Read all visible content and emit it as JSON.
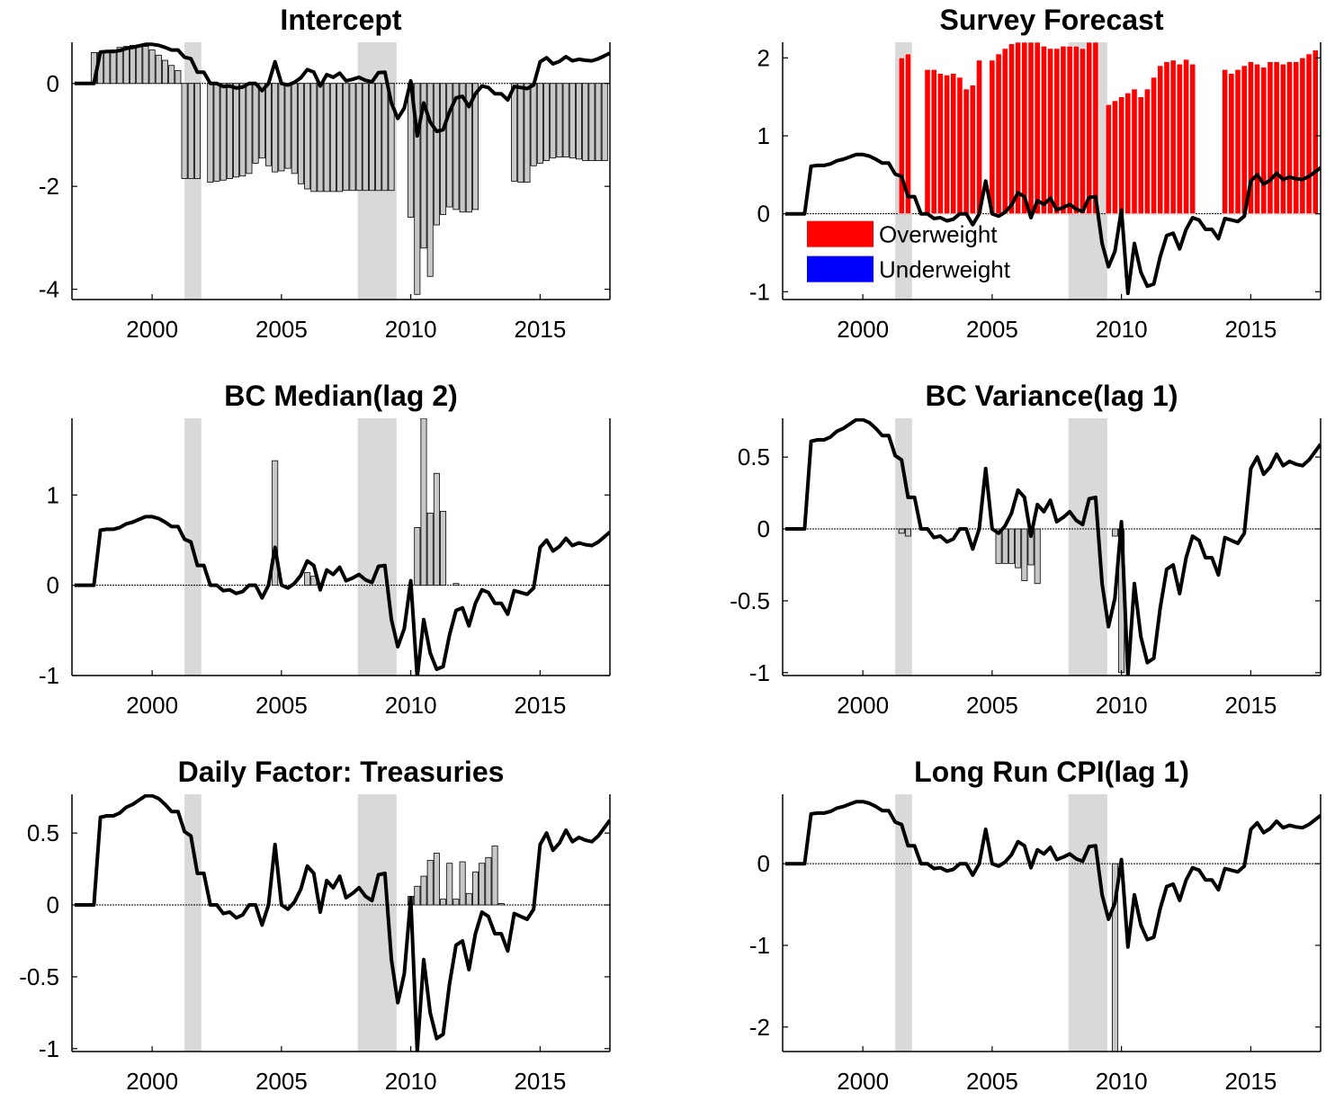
{
  "chart_data": [
    {
      "type": "bar",
      "title": "Intercept",
      "xlim": [
        1996.9,
        2017.7
      ],
      "ylim": [
        -4.2,
        0.8
      ],
      "xticks": [
        2000,
        2005,
        2010,
        2015
      ],
      "yticks": [
        -4,
        -2,
        0
      ],
      "ytick_labels": [
        "-4",
        "-2",
        "0"
      ],
      "shaded_periods": [
        [
          2001.25,
          2001.9
        ],
        [
          2007.95,
          2009.45
        ]
      ],
      "bar_color": "#c8c8c8",
      "series": [
        {
          "kind": "bars",
          "x": [
            1997.75,
            1998.0,
            1998.25,
            1998.5,
            1998.75,
            1999.0,
            1999.25,
            1999.5,
            1999.75,
            2000.0,
            2000.25,
            2000.5,
            2000.75,
            2001.0,
            2001.25,
            2001.5,
            2001.75,
            2002.25,
            2002.5,
            2002.75,
            2003.0,
            2003.25,
            2003.5,
            2003.75,
            2004.0,
            2004.25,
            2004.5,
            2004.75,
            2005.0,
            2005.25,
            2005.5,
            2005.75,
            2006.0,
            2006.25,
            2006.5,
            2006.75,
            2007.0,
            2007.25,
            2007.5,
            2007.75,
            2008.0,
            2008.25,
            2008.5,
            2008.75,
            2009.0,
            2009.25,
            2010.0,
            2010.25,
            2010.5,
            2010.75,
            2011.0,
            2011.25,
            2011.5,
            2011.75,
            2012.0,
            2012.25,
            2012.5,
            2014.0,
            2014.25,
            2014.5,
            2014.75,
            2015.0,
            2015.25,
            2015.5,
            2015.75,
            2016.0,
            2016.25,
            2016.5,
            2016.75,
            2017.0,
            2017.25,
            2017.5
          ],
          "y": [
            0.6,
            0.6,
            0.62,
            0.65,
            0.7,
            0.72,
            0.74,
            0.75,
            0.72,
            0.65,
            0.55,
            0.45,
            0.35,
            0.25,
            -1.85,
            -1.85,
            -1.85,
            -1.92,
            -1.9,
            -1.88,
            -1.85,
            -1.82,
            -1.8,
            -1.75,
            -1.55,
            -1.45,
            -1.6,
            -1.72,
            -1.7,
            -1.65,
            -1.75,
            -1.95,
            -2.05,
            -2.1,
            -2.1,
            -2.1,
            -2.1,
            -2.1,
            -2.08,
            -2.08,
            -2.08,
            -2.08,
            -2.08,
            -2.08,
            -2.08,
            -2.08,
            -2.6,
            -4.1,
            -3.2,
            -3.75,
            -2.75,
            -2.55,
            -2.4,
            -2.45,
            -2.5,
            -2.5,
            -2.45,
            -1.9,
            -1.92,
            -1.92,
            -1.6,
            -1.55,
            -1.5,
            -1.45,
            -1.43,
            -1.43,
            -1.45,
            -1.47,
            -1.5,
            -1.5,
            -1.5,
            -1.5
          ]
        }
      ]
    },
    {
      "type": "bar",
      "title": "Survey Forecast",
      "xlim": [
        1996.9,
        2017.7
      ],
      "ylim": [
        -1.1,
        2.2
      ],
      "xticks": [
        2000,
        2005,
        2010,
        2015
      ],
      "yticks": [
        -1,
        0,
        1,
        2
      ],
      "ytick_labels": [
        "-1",
        "0",
        "1",
        "2"
      ],
      "shaded_periods": [
        [
          2001.25,
          2001.9
        ],
        [
          2007.95,
          2009.45
        ]
      ],
      "bar_color": "#ff0000",
      "legend": {
        "position": "lower-left",
        "items": [
          {
            "label": "Overweight",
            "color": "#ff0000"
          },
          {
            "label": "Underweight",
            "color": "#0000ff"
          }
        ]
      },
      "series": [
        {
          "kind": "bars",
          "x": [
            2001.5,
            2001.75,
            2002.5,
            2002.75,
            2003.0,
            2003.25,
            2003.5,
            2003.75,
            2004.0,
            2004.25,
            2004.5,
            2005.0,
            2005.25,
            2005.5,
            2005.75,
            2006.0,
            2006.25,
            2006.5,
            2006.75,
            2007.0,
            2007.25,
            2007.5,
            2007.75,
            2008.0,
            2008.25,
            2008.5,
            2008.75,
            2009.0,
            2009.5,
            2009.75,
            2010.0,
            2010.25,
            2010.5,
            2010.75,
            2011.0,
            2011.25,
            2011.5,
            2011.75,
            2012.0,
            2012.25,
            2012.5,
            2012.75,
            2014.0,
            2014.25,
            2014.5,
            2014.75,
            2015.0,
            2015.25,
            2015.5,
            2015.75,
            2016.0,
            2016.25,
            2016.5,
            2016.75,
            2017.0,
            2017.25,
            2017.5
          ],
          "y": [
            2.0,
            2.05,
            1.85,
            1.85,
            1.8,
            1.78,
            1.8,
            1.75,
            1.6,
            1.65,
            1.97,
            1.97,
            2.05,
            2.12,
            2.18,
            2.2,
            2.2,
            2.2,
            2.2,
            2.15,
            2.12,
            2.12,
            2.15,
            2.15,
            2.15,
            2.12,
            2.2,
            2.2,
            1.4,
            1.45,
            1.5,
            1.55,
            1.6,
            1.5,
            1.6,
            1.75,
            1.9,
            1.95,
            1.97,
            1.92,
            1.98,
            1.92,
            1.85,
            1.8,
            1.85,
            1.9,
            1.95,
            1.92,
            1.88,
            1.95,
            1.95,
            1.92,
            1.95,
            1.95,
            2.0,
            2.05,
            2.1
          ]
        }
      ]
    },
    {
      "type": "bar",
      "title": "BC Median(lag 2)",
      "xlim": [
        1996.9,
        2017.7
      ],
      "ylim": [
        -1.0,
        1.85
      ],
      "xticks": [
        2000,
        2005,
        2010,
        2015
      ],
      "yticks": [
        -1,
        0,
        1
      ],
      "ytick_labels": [
        "-1",
        "0",
        "1"
      ],
      "shaded_periods": [
        [
          2001.25,
          2001.9
        ],
        [
          2007.95,
          2009.45
        ]
      ],
      "bar_color": "#c8c8c8",
      "series": [
        {
          "kind": "bars",
          "x": [
            2004.75,
            2006.0,
            2006.25,
            2010.25,
            2010.5,
            2010.75,
            2011.0,
            2011.25,
            2011.75
          ],
          "y": [
            1.38,
            0.14,
            0.1,
            0.64,
            1.85,
            0.8,
            1.24,
            0.82,
            0.02
          ]
        }
      ]
    },
    {
      "type": "bar",
      "title": "BC Variance(lag 1)",
      "xlim": [
        1996.9,
        2017.7
      ],
      "ylim": [
        -1.02,
        0.77
      ],
      "xticks": [
        2000,
        2005,
        2010,
        2015
      ],
      "yticks": [
        -1,
        -0.5,
        0,
        0.5
      ],
      "ytick_labels": [
        "-1",
        "-0.5",
        "0",
        "0.5"
      ],
      "shaded_periods": [
        [
          2001.25,
          2001.9
        ],
        [
          2007.95,
          2009.45
        ]
      ],
      "bar_color": "#c8c8c8",
      "series": [
        {
          "kind": "bars",
          "x": [
            2001.5,
            2001.75,
            2005.25,
            2005.5,
            2005.75,
            2006.0,
            2006.25,
            2006.5,
            2006.75,
            2009.75,
            2010.0
          ],
          "y": [
            -0.03,
            -0.05,
            -0.24,
            -0.24,
            -0.24,
            -0.27,
            -0.36,
            -0.25,
            -0.38,
            -0.05,
            -1.0
          ]
        }
      ]
    },
    {
      "type": "bar",
      "title": "Daily Factor: Treasuries",
      "xlim": [
        1996.9,
        2017.7
      ],
      "ylim": [
        -1.02,
        0.77
      ],
      "xticks": [
        2000,
        2005,
        2010,
        2015
      ],
      "yticks": [
        -1,
        -0.5,
        0,
        0.5
      ],
      "ytick_labels": [
        "-1",
        "-0.5",
        "0",
        "0.5"
      ],
      "shaded_periods": [
        [
          2001.25,
          2001.9
        ],
        [
          2007.95,
          2009.45
        ]
      ],
      "bar_color": "#c8c8c8",
      "series": [
        {
          "kind": "bars",
          "x": [
            2010.0,
            2010.25,
            2010.5,
            2010.75,
            2011.0,
            2011.25,
            2011.5,
            2011.75,
            2012.0,
            2012.25,
            2012.5,
            2012.75,
            2013.0,
            2013.25,
            2013.5
          ],
          "y": [
            0.06,
            0.13,
            0.2,
            0.31,
            0.36,
            0.04,
            0.29,
            0.04,
            0.3,
            0.08,
            0.23,
            0.29,
            0.33,
            0.41,
            0.01
          ]
        }
      ]
    },
    {
      "type": "bar",
      "title": "Long Run CPI(lag 1)",
      "xlim": [
        1996.9,
        2017.7
      ],
      "ylim": [
        -2.3,
        0.85
      ],
      "xticks": [
        2000,
        2005,
        2010,
        2015
      ],
      "yticks": [
        -2,
        -1,
        0
      ],
      "ytick_labels": [
        "-2",
        "-1",
        "0"
      ],
      "shaded_periods": [
        [
          2001.25,
          2001.9
        ],
        [
          2007.95,
          2009.45
        ]
      ],
      "bar_color": "#c8c8c8",
      "series": [
        {
          "kind": "bars",
          "x": [
            2009.75
          ],
          "y": [
            -2.3
          ]
        }
      ]
    }
  ],
  "common_line": {
    "color": "#000000",
    "x": [
      1997.0,
      1997.25,
      1997.5,
      1997.75,
      1998.0,
      1998.25,
      1998.5,
      1998.75,
      1999.0,
      1999.25,
      1999.5,
      1999.75,
      2000.0,
      2000.25,
      2000.5,
      2000.75,
      2001.0,
      2001.25,
      2001.5,
      2001.75,
      2002.0,
      2002.25,
      2002.5,
      2002.75,
      2003.0,
      2003.25,
      2003.5,
      2003.75,
      2004.0,
      2004.25,
      2004.5,
      2004.75,
      2005.0,
      2005.25,
      2005.5,
      2005.75,
      2006.0,
      2006.25,
      2006.5,
      2006.75,
      2007.0,
      2007.25,
      2007.5,
      2007.75,
      2008.0,
      2008.25,
      2008.5,
      2008.75,
      2009.0,
      2009.25,
      2009.5,
      2009.75,
      2010.0,
      2010.25,
      2010.5,
      2010.75,
      2011.0,
      2011.25,
      2011.5,
      2011.75,
      2012.0,
      2012.25,
      2012.5,
      2012.75,
      2013.0,
      2013.25,
      2013.5,
      2013.75,
      2014.0,
      2014.25,
      2014.5,
      2014.75,
      2015.0,
      2015.25,
      2015.5,
      2015.75,
      2016.0,
      2016.25,
      2016.5,
      2016.75,
      2017.0,
      2017.25,
      2017.5,
      2017.7
    ],
    "y": [
      0.0,
      0.0,
      0.0,
      0.0,
      0.61,
      0.62,
      0.62,
      0.64,
      0.68,
      0.7,
      0.73,
      0.76,
      0.76,
      0.74,
      0.7,
      0.65,
      0.65,
      0.51,
      0.48,
      0.22,
      0.22,
      0.0,
      0.0,
      -0.06,
      -0.05,
      -0.09,
      -0.07,
      0.0,
      0.0,
      -0.14,
      0.0,
      0.42,
      0.0,
      -0.03,
      0.02,
      0.11,
      0.27,
      0.22,
      -0.05,
      0.17,
      0.12,
      0.2,
      0.05,
      0.08,
      0.12,
      0.06,
      0.03,
      0.21,
      0.22,
      -0.38,
      -0.68,
      -0.48,
      0.05,
      -1.02,
      -0.38,
      -0.75,
      -0.93,
      -0.9,
      -0.55,
      -0.28,
      -0.25,
      -0.45,
      -0.2,
      -0.05,
      -0.08,
      -0.2,
      -0.2,
      -0.32,
      -0.06,
      -0.08,
      -0.1,
      -0.03,
      0.42,
      0.5,
      0.38,
      0.43,
      0.52,
      0.44,
      0.47,
      0.45,
      0.44,
      0.48,
      0.54,
      0.59
    ]
  }
}
